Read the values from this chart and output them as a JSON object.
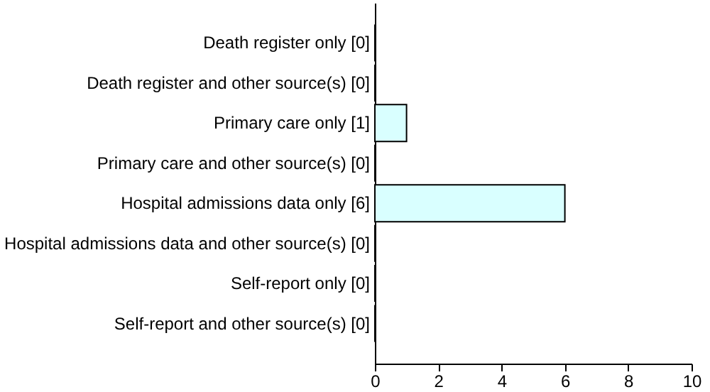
{
  "chart_data": {
    "type": "bar",
    "orientation": "horizontal",
    "categories": [
      "Death register only [0]",
      "Death register and other source(s) [0]",
      "Primary care only [1]",
      "Primary care and other source(s) [0]",
      "Hospital admissions data only [6]",
      "Hospital admissions data and other source(s) [0]",
      "Self-report only [0]",
      "Self-report and other source(s) [0]"
    ],
    "values": [
      0,
      0,
      1,
      0,
      6,
      0,
      0,
      0
    ],
    "color": "#d9ffff",
    "xlim": [
      0,
      10
    ],
    "xticks": [
      0,
      2,
      4,
      6,
      8,
      10
    ],
    "grid": false
  }
}
